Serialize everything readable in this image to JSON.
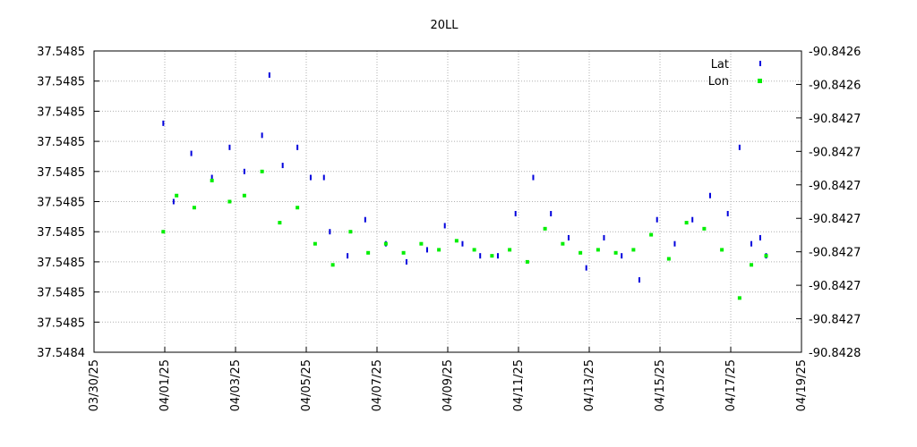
{
  "chart_data": {
    "type": "scatter",
    "title": "20LL",
    "xlabel": "",
    "ylabel": "",
    "y2label": "",
    "x_range": [
      "2025-03-30",
      "2025-04-19"
    ],
    "x_ticks": [
      "03/30/25",
      "04/01/25",
      "04/03/25",
      "04/05/25",
      "04/07/25",
      "04/09/25",
      "04/11/25",
      "04/13/25",
      "04/15/25",
      "04/17/25",
      "04/19/25"
    ],
    "y_left_ticks": [
      "37.5484",
      "37.5485",
      "37.5485",
      "37.5485",
      "37.5485",
      "37.5485",
      "37.5485",
      "37.5485",
      "37.5485",
      "37.5485",
      "37.5485"
    ],
    "y_right_ticks": [
      "-90.8428",
      "-90.8427",
      "-90.8427",
      "-90.8427",
      "-90.8427",
      "-90.8427",
      "-90.8427",
      "-90.8427",
      "-90.8426",
      "-90.8426"
    ],
    "grid": true,
    "legend_position": "top-right",
    "series": [
      {
        "name": "Lat",
        "axis": "left",
        "color": "#0000dd",
        "marker": "vertical-dash",
        "points": [
          [
            "2025-03-31T23:00",
            37.548476
          ],
          [
            "2025-04-01T06:00",
            37.54845
          ],
          [
            "2025-04-01T18:00",
            37.548466
          ],
          [
            "2025-04-02T08:00",
            37.548458
          ],
          [
            "2025-04-02T20:00",
            37.548468
          ],
          [
            "2025-04-03T06:00",
            37.54846
          ],
          [
            "2025-04-03T18:00",
            37.548472
          ],
          [
            "2025-04-03T23:00",
            37.548492
          ],
          [
            "2025-04-04T08:00",
            37.548462
          ],
          [
            "2025-04-04T18:00",
            37.548468
          ],
          [
            "2025-04-05T03:00",
            37.548458
          ],
          [
            "2025-04-05T12:00",
            37.548458
          ],
          [
            "2025-04-05T16:00",
            37.54844
          ],
          [
            "2025-04-06T04:00",
            37.548432
          ],
          [
            "2025-04-06T16:00",
            37.548444
          ],
          [
            "2025-04-07T06:00",
            37.548436
          ],
          [
            "2025-04-07T20:00",
            37.54843
          ],
          [
            "2025-04-08T10:00",
            37.548434
          ],
          [
            "2025-04-08T22:00",
            37.548442
          ],
          [
            "2025-04-09T10:00",
            37.548436
          ],
          [
            "2025-04-09T22:00",
            37.548432
          ],
          [
            "2025-04-10T10:00",
            37.548432
          ],
          [
            "2025-04-10T22:00",
            37.548446
          ],
          [
            "2025-04-11T10:00",
            37.548458
          ],
          [
            "2025-04-11T22:00",
            37.548446
          ],
          [
            "2025-04-12T10:00",
            37.548438
          ],
          [
            "2025-04-12T22:00",
            37.548428
          ],
          [
            "2025-04-13T10:00",
            37.548438
          ],
          [
            "2025-04-13T22:00",
            37.548432
          ],
          [
            "2025-04-14T10:00",
            37.548424
          ],
          [
            "2025-04-14T22:00",
            37.548444
          ],
          [
            "2025-04-15T10:00",
            37.548436
          ],
          [
            "2025-04-15T22:00",
            37.548444
          ],
          [
            "2025-04-16T10:00",
            37.548452
          ],
          [
            "2025-04-16T22:00",
            37.548446
          ],
          [
            "2025-04-17T06:00",
            37.548468
          ],
          [
            "2025-04-17T14:00",
            37.548436
          ],
          [
            "2025-04-17T20:00",
            37.548438
          ],
          [
            "2025-04-18T00:00",
            37.548432
          ]
        ]
      },
      {
        "name": "Lon",
        "axis": "right",
        "color": "#00ee00",
        "marker": "square",
        "points": [
          [
            "2025-03-31T23:00",
            -90.8427
          ],
          [
            "2025-04-01T08:00",
            -90.842676
          ],
          [
            "2025-04-01T20:00",
            -90.842684
          ],
          [
            "2025-04-02T08:00",
            -90.842666
          ],
          [
            "2025-04-02T20:00",
            -90.84268
          ],
          [
            "2025-04-03T06:00",
            -90.842676
          ],
          [
            "2025-04-03T18:00",
            -90.84266
          ],
          [
            "2025-04-04T06:00",
            -90.842694
          ],
          [
            "2025-04-04T18:00",
            -90.842684
          ],
          [
            "2025-04-05T06:00",
            -90.842708
          ],
          [
            "2025-04-05T18:00",
            -90.842722
          ],
          [
            "2025-04-06T06:00",
            -90.8427
          ],
          [
            "2025-04-06T18:00",
            -90.842714
          ],
          [
            "2025-04-07T06:00",
            -90.842708
          ],
          [
            "2025-04-07T18:00",
            -90.842714
          ],
          [
            "2025-04-08T06:00",
            -90.842708
          ],
          [
            "2025-04-08T18:00",
            -90.842712
          ],
          [
            "2025-04-09T06:00",
            -90.842706
          ],
          [
            "2025-04-09T18:00",
            -90.842712
          ],
          [
            "2025-04-10T06:00",
            -90.842716
          ],
          [
            "2025-04-10T18:00",
            -90.842712
          ],
          [
            "2025-04-11T06:00",
            -90.84272
          ],
          [
            "2025-04-11T18:00",
            -90.842698
          ],
          [
            "2025-04-12T06:00",
            -90.842708
          ],
          [
            "2025-04-12T18:00",
            -90.842714
          ],
          [
            "2025-04-13T06:00",
            -90.842712
          ],
          [
            "2025-04-13T18:00",
            -90.842714
          ],
          [
            "2025-04-14T06:00",
            -90.842712
          ],
          [
            "2025-04-14T18:00",
            -90.842702
          ],
          [
            "2025-04-15T06:00",
            -90.842718
          ],
          [
            "2025-04-15T18:00",
            -90.842694
          ],
          [
            "2025-04-16T06:00",
            -90.842698
          ],
          [
            "2025-04-16T18:00",
            -90.842712
          ],
          [
            "2025-04-17T06:00",
            -90.842744
          ],
          [
            "2025-04-17T14:00",
            -90.842722
          ],
          [
            "2025-04-18T00:00",
            -90.842716
          ]
        ]
      }
    ]
  }
}
